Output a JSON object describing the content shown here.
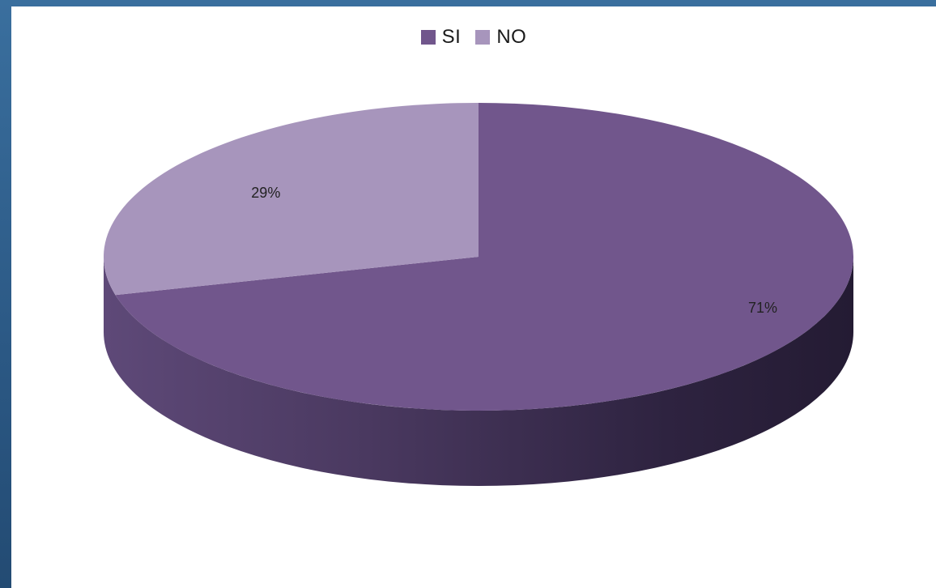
{
  "chart_data": {
    "type": "pie",
    "title": "",
    "legend_position": "top",
    "style": "3d",
    "slices": [
      {
        "name": "SI",
        "value": 71,
        "label": "71%",
        "color": "#71568c"
      },
      {
        "name": "NO",
        "value": 29,
        "label": "29%",
        "color": "#a795bc"
      }
    ]
  }
}
